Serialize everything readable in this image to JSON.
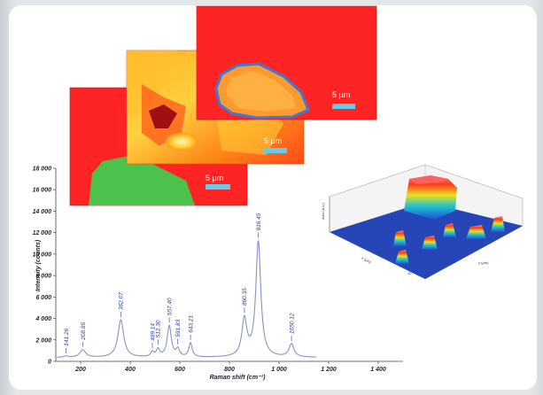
{
  "chart_data": {
    "type": "line",
    "title": "",
    "xlabel": "Raman shift (cm⁻¹)",
    "ylabel": "Intensity (counts)",
    "xlim": [
      100,
      1500
    ],
    "ylim": [
      0,
      18000
    ],
    "x_ticks": [
      "200",
      "400",
      "600",
      "800",
      "1 000",
      "1 200",
      "1 400"
    ],
    "x_tick_values": [
      200,
      400,
      600,
      800,
      1000,
      1200,
      1400
    ],
    "y_ticks": [
      "0",
      "2 000",
      "4 000",
      "6 000",
      "8 000",
      "10 000",
      "12 000",
      "14 000",
      "16 000",
      "18 000"
    ],
    "y_tick_values": [
      0,
      2000,
      4000,
      6000,
      8000,
      10000,
      12000,
      14000,
      16000,
      18000
    ],
    "baseline": 350,
    "peaks": [
      {
        "label": "141.26",
        "x": 141.26,
        "height": 120,
        "width": 10
      },
      {
        "label": "208.85",
        "x": 208.85,
        "height": 700,
        "width": 14
      },
      {
        "label": "362.07",
        "x": 362.07,
        "height": 3500,
        "width": 14
      },
      {
        "label": "489.14",
        "x": 489.14,
        "height": 450,
        "width": 8
      },
      {
        "label": "512.30",
        "x": 512.3,
        "height": 700,
        "width": 8
      },
      {
        "label": "557.40",
        "x": 557.4,
        "height": 2900,
        "width": 10
      },
      {
        "label": "591.83",
        "x": 591.83,
        "height": 700,
        "width": 8
      },
      {
        "label": "643.21",
        "x": 643.21,
        "height": 1300,
        "width": 8
      },
      {
        "label": "860.35",
        "x": 860.35,
        "height": 3450,
        "width": 12
      },
      {
        "label": "916.45",
        "x": 916.45,
        "height": 10750,
        "width": 12
      },
      {
        "label": "1050.12",
        "x": 1050.12,
        "height": 1200,
        "width": 12
      }
    ],
    "map_scale_labels": [
      "5 µm",
      "5 µm",
      "5 µm"
    ],
    "surface_axis_labels": {
      "z": "Area (a.u.)",
      "x": "x (µm)",
      "y": "y (µm)",
      "tick": "10"
    },
    "colors": {
      "line": "#8890cc",
      "map_red": "#ff2020",
      "map_green": "#4cc24c",
      "surface_blue": "#1f3fb0",
      "scale_bar": "#66ccee"
    }
  }
}
